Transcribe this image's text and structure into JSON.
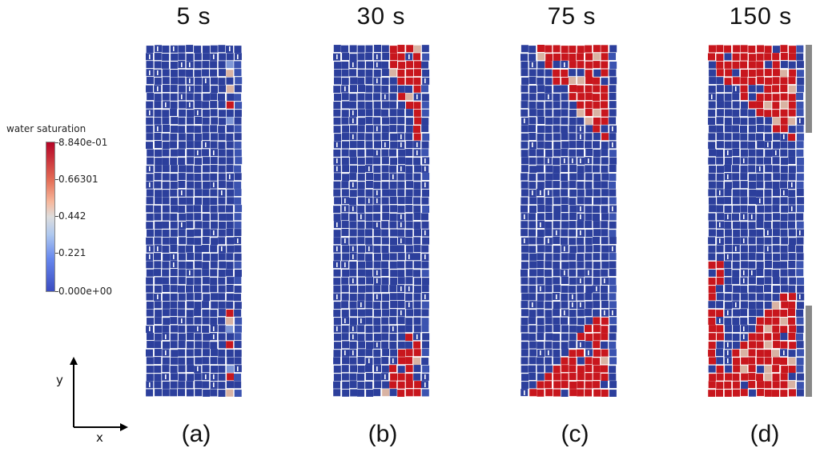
{
  "legend": {
    "title": "water saturation",
    "ticks": [
      "8.840e-01",
      "0.66301",
      "0.442",
      "0.221",
      "0.000e+00"
    ]
  },
  "axes": {
    "x_label": "x",
    "y_label": "y"
  },
  "panels": [
    {
      "time": "5 s",
      "label": "(a)",
      "front_top_rows": 0,
      "front_bottom_rows": 0,
      "boundary_bars": false
    },
    {
      "time": "30 s",
      "label": "(b)",
      "front_top_rows": 7,
      "front_bottom_rows": 6,
      "boundary_bars": false
    },
    {
      "time": "75 s",
      "label": "(c)",
      "front_top_rows": 7,
      "front_bottom_rows": 7,
      "boundary_bars": false
    },
    {
      "time": "150 s",
      "label": "(d)",
      "front_top_rows": 7,
      "front_bottom_rows": 9,
      "boundary_bars": true
    }
  ],
  "colors": {
    "dry": "#2c3f9c",
    "wet": "#c8161d",
    "mid": "#d9b3a3",
    "boundary": "#888888"
  }
}
